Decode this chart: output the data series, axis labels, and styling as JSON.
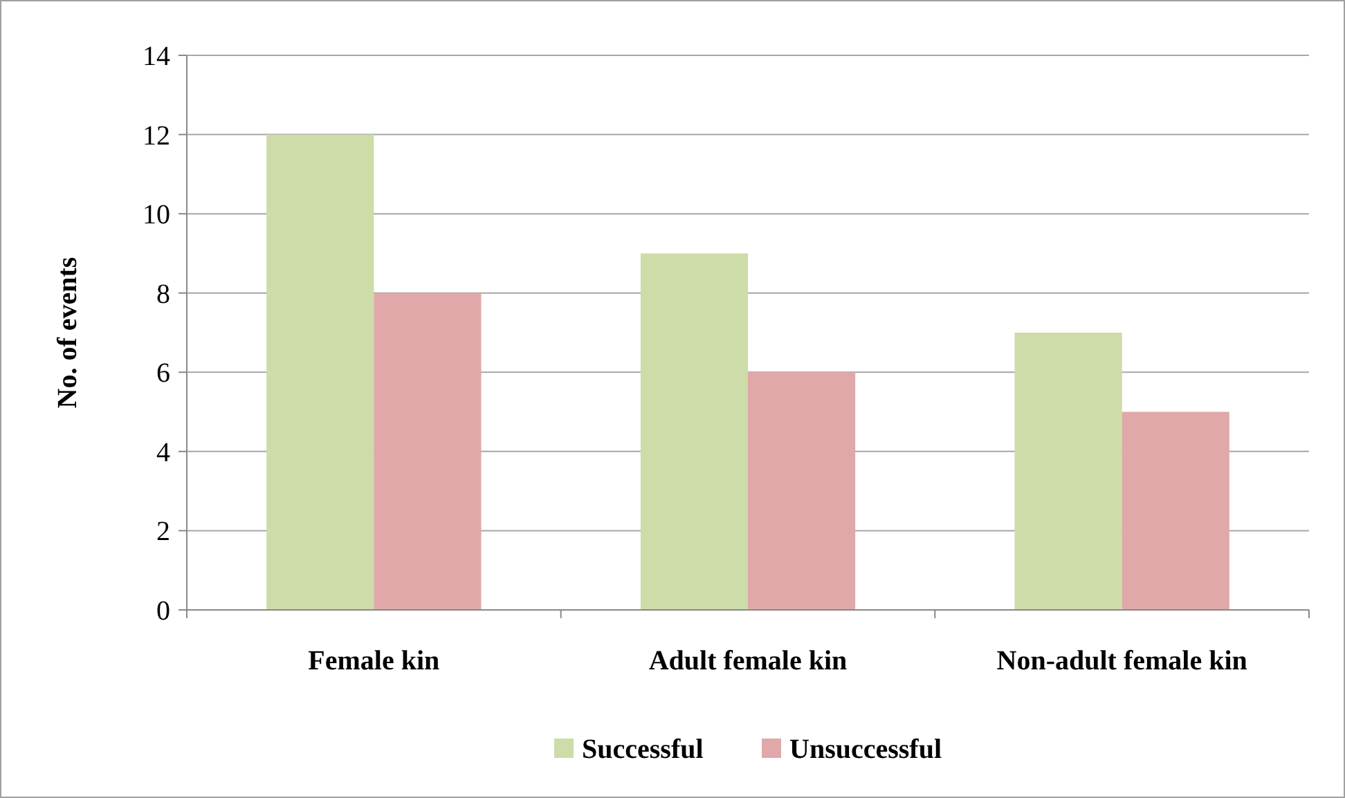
{
  "chart_data": {
    "type": "bar",
    "ylabel": "No. of events",
    "categories": [
      "Female kin",
      "Adult female kin",
      "Non-adult female kin"
    ],
    "series": [
      {
        "name": "Successful",
        "color": "#cddca8",
        "values": [
          12,
          9,
          7
        ]
      },
      {
        "name": "Unsuccessful",
        "color": "#e0a8a8",
        "values": [
          8,
          6,
          5
        ]
      }
    ],
    "ylim": [
      0,
      14
    ],
    "yticks": [
      0,
      2,
      4,
      6,
      8,
      10,
      12,
      14
    ],
    "grid": "y",
    "legend": "bottom"
  }
}
